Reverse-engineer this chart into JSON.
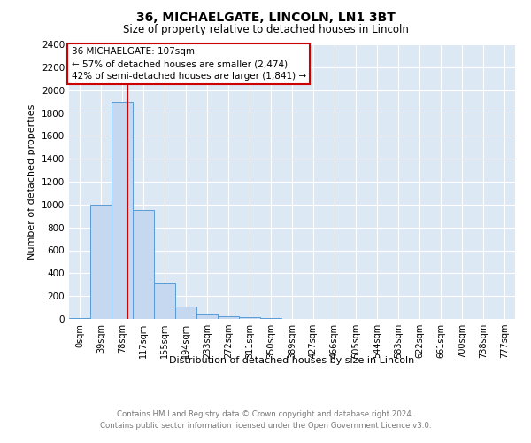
{
  "title1": "36, MICHAELGATE, LINCOLN, LN1 3BT",
  "title2": "Size of property relative to detached houses in Lincoln",
  "xlabel": "Distribution of detached houses by size in Lincoln",
  "ylabel": "Number of detached properties",
  "footnote1": "Contains HM Land Registry data © Crown copyright and database right 2024.",
  "footnote2": "Contains public sector information licensed under the Open Government Licence v3.0.",
  "bin_labels": [
    "0sqm",
    "39sqm",
    "78sqm",
    "117sqm",
    "155sqm",
    "194sqm",
    "233sqm",
    "272sqm",
    "311sqm",
    "350sqm",
    "389sqm",
    "427sqm",
    "466sqm",
    "505sqm",
    "544sqm",
    "583sqm",
    "622sqm",
    "661sqm",
    "700sqm",
    "738sqm",
    "777sqm"
  ],
  "bar_values": [
    10,
    1000,
    1900,
    950,
    320,
    105,
    45,
    20,
    15,
    5,
    2,
    0,
    0,
    0,
    0,
    0,
    0,
    0,
    0,
    0,
    0
  ],
  "bar_color": "#c5d8f0",
  "bar_edge_color": "#5a9bd5",
  "property_line_x": 107,
  "property_line_label": "36 MICHAELGATE: 107sqm",
  "annotation_line1": "← 57% of detached houses are smaller (2,474)",
  "annotation_line2": "42% of semi-detached houses are larger (1,841) →",
  "red_line_color": "#cc0000",
  "box_edge_color": "#cc0000",
  "ylim": [
    0,
    2400
  ],
  "yticks": [
    0,
    200,
    400,
    600,
    800,
    1000,
    1200,
    1400,
    1600,
    1800,
    2000,
    2200,
    2400
  ],
  "bin_width": 39,
  "background_color": "#dde8f5",
  "plot_bg_color": "#dde8f5",
  "fig_width": 6.0,
  "fig_height": 5.0,
  "fig_dpi": 100
}
